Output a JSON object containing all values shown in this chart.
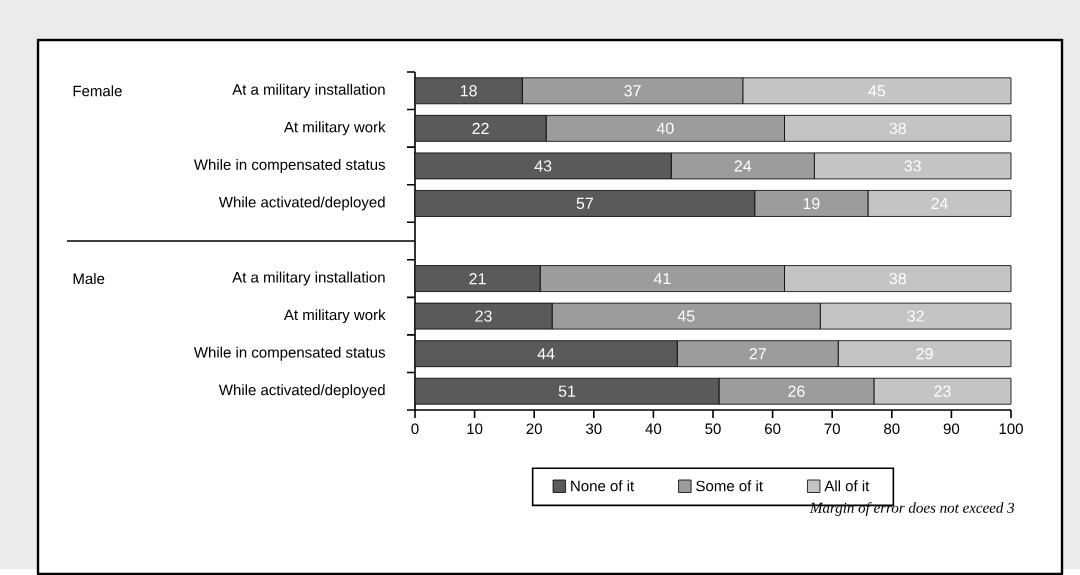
{
  "chart_data": {
    "type": "bar",
    "orientation": "horizontal",
    "stacked": true,
    "data_labels": true,
    "legend": "bottom",
    "categories": [
      "At a military installation",
      "At military work",
      "While in compensated status",
      "While activated/deployed",
      null,
      "At a military installation",
      "At military work",
      "While in compensated status",
      "While activated/deployed"
    ],
    "series": [
      {
        "name": "None of it",
        "color": "#5a5a5a",
        "values": [
          18,
          22,
          43,
          57,
          null,
          21,
          23,
          44,
          51
        ]
      },
      {
        "name": "Some of it",
        "color": "#9c9c9c",
        "values": [
          37,
          40,
          24,
          19,
          null,
          41,
          45,
          27,
          26
        ]
      },
      {
        "name": "All of it",
        "color": "#c4c4c4",
        "values": [
          45,
          38,
          33,
          24,
          null,
          38,
          32,
          29,
          23
        ]
      }
    ],
    "xlim": [
      0,
      100
    ],
    "xticks": [
      0,
      10,
      20,
      30,
      40,
      50,
      60,
      70,
      80,
      90,
      100
    ],
    "annotations": [
      "Female",
      "Male",
      "Margin of error does not exceed 3"
    ]
  }
}
